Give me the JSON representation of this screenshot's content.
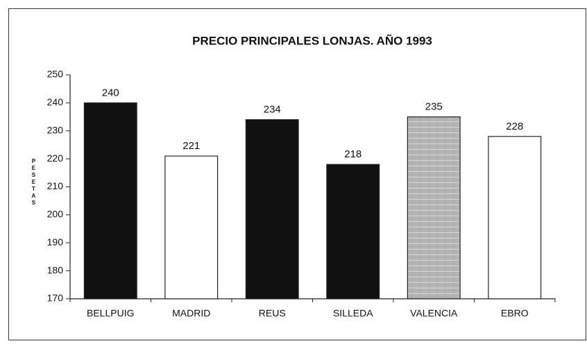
{
  "chart_data": {
    "type": "bar",
    "title": "PRECIO PRINCIPALES LONJAS. AÑO 1993",
    "y_label": "PESETAS",
    "categories": [
      "BELLPUIG",
      "MADRID",
      "REUS",
      "SILLEDA",
      "VALENCIA",
      "EBRO"
    ],
    "values": [
      240,
      221,
      234,
      218,
      235,
      228
    ],
    "colors": [
      "#111111",
      "#ffffff",
      "#111111",
      "#111111",
      "#b4b4b4",
      "#ffffff"
    ],
    "ylim": [
      170,
      250
    ],
    "yticks": [
      170,
      180,
      190,
      200,
      210,
      220,
      230,
      240,
      250
    ],
    "grid": false
  }
}
